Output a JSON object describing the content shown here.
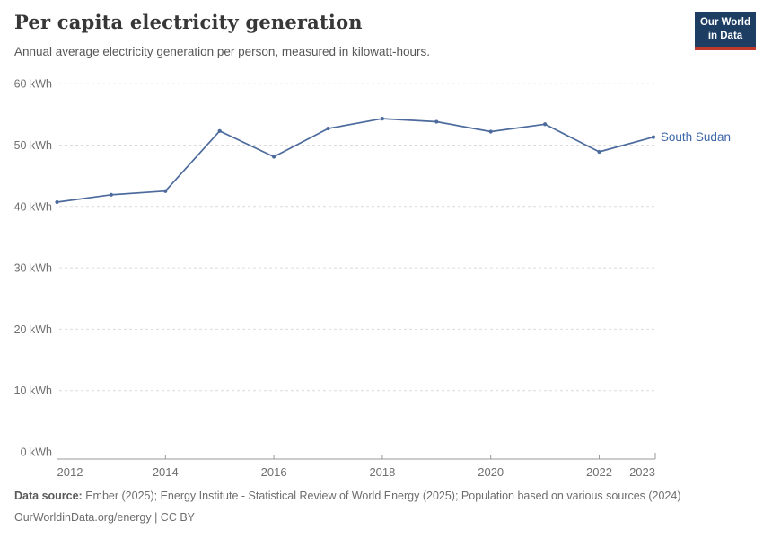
{
  "header": {
    "title": "Per capita electricity generation",
    "subtitle": "Annual average electricity generation per person, measured in kilowatt-hours.",
    "logo": {
      "line1": "Our World",
      "line2": "in Data",
      "bg_color": "#1d3d63",
      "accent_color": "#c0392b"
    }
  },
  "chart_data": {
    "type": "line",
    "title": "Per capita electricity generation",
    "xlabel": "",
    "ylabel": "kWh",
    "x": [
      2012,
      2013,
      2014,
      2015,
      2016,
      2017,
      2018,
      2019,
      2020,
      2021,
      2022,
      2023
    ],
    "series": [
      {
        "name": "South Sudan",
        "color": "#4c6a9c",
        "label_color": "#3d66a8",
        "values": [
          40.7,
          41.9,
          42.5,
          52.3,
          48.1,
          52.7,
          54.3,
          53.8,
          52.2,
          53.4,
          48.9,
          51.3
        ]
      }
    ],
    "end_label": "South Sudan",
    "ylim": [
      0,
      60
    ],
    "ytick_step": 10,
    "ytick_suffix": " kWh",
    "xticks": [
      2012,
      2014,
      2016,
      2018,
      2020,
      2022,
      2023
    ],
    "grid": "horizontal-dashed",
    "legend_position": "end-of-line"
  },
  "footer": {
    "source_label": "Data source:",
    "source_text": " Ember (2025); Energy Institute - Statistical Review of World Energy (2025); Population based on various sources (2024)",
    "link_line": "OurWorldinData.org/energy | CC BY"
  }
}
